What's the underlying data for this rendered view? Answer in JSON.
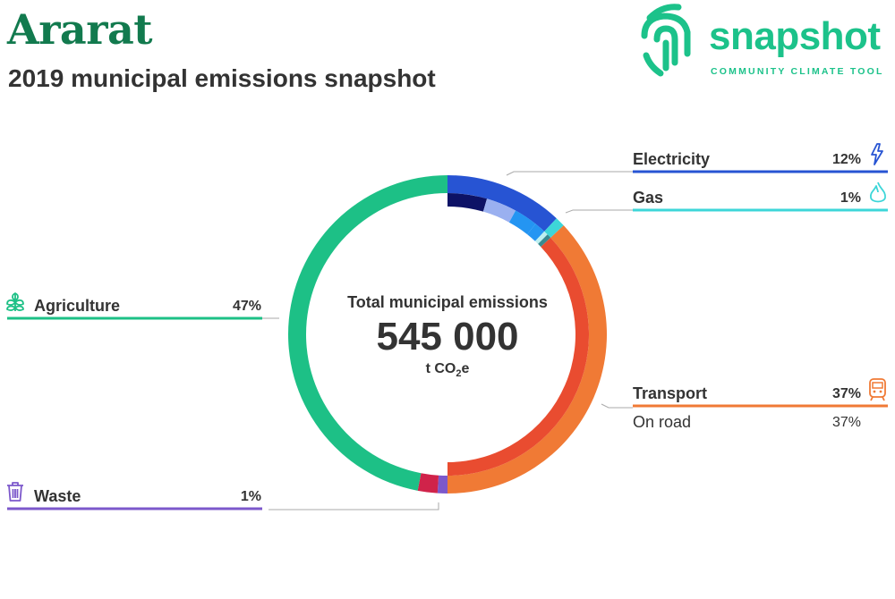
{
  "header": {
    "title": "Ararat",
    "subtitle": "2019 municipal emissions snapshot"
  },
  "logo": {
    "word": "snapshot",
    "tagline": "COMMUNITY CLIMATE TOOL",
    "icon": "fingerprint-icon",
    "color": "#1cc28a"
  },
  "center": {
    "label": "Total municipal emissions",
    "value": "545 000",
    "unit_main": "t CO",
    "unit_sub": "2",
    "unit_end": "e"
  },
  "chart_data": {
    "type": "pie",
    "variant": "donut",
    "total": "545 000",
    "unit": "t CO2e",
    "sectors": [
      {
        "name": "Electricity",
        "label": "12%",
        "value": 12,
        "color": "#2754d3",
        "icon": "lightning-icon",
        "sub": [
          {
            "value": 4.5,
            "color": "#0d1266"
          },
          {
            "value": 3.5,
            "color": "#9ab0f0"
          },
          {
            "value": 2.7,
            "color": "#2495f2"
          },
          {
            "value": 1.3,
            "color": "#2495f2"
          }
        ]
      },
      {
        "name": "Gas",
        "label": "1%",
        "value": 1,
        "color": "#3dd6d8",
        "icon": "flame-icon",
        "sub": [
          {
            "value": 0.5,
            "color": "#bdeff0"
          },
          {
            "value": 0.5,
            "color": "#3a8a90"
          }
        ]
      },
      {
        "name": "Transport",
        "label": "37%",
        "value": 37,
        "color": "#f07a35",
        "icon": "train-icon",
        "sub_label": "On road",
        "sub_value_label": "37%",
        "sub": [
          {
            "value": 37,
            "color": "#e94c30"
          }
        ]
      },
      {
        "name": "Waste",
        "label": "1%",
        "value": 1,
        "color": "#7c58cb",
        "icon": "trash-icon",
        "sub": []
      },
      {
        "name": "",
        "label": "",
        "value": 2,
        "color": "#d0234a",
        "icon": "",
        "sub": []
      },
      {
        "name": "Agriculture",
        "label": "47%",
        "value": 47,
        "color": "#1dc086",
        "icon": "sprout-icon",
        "sub": []
      }
    ]
  }
}
